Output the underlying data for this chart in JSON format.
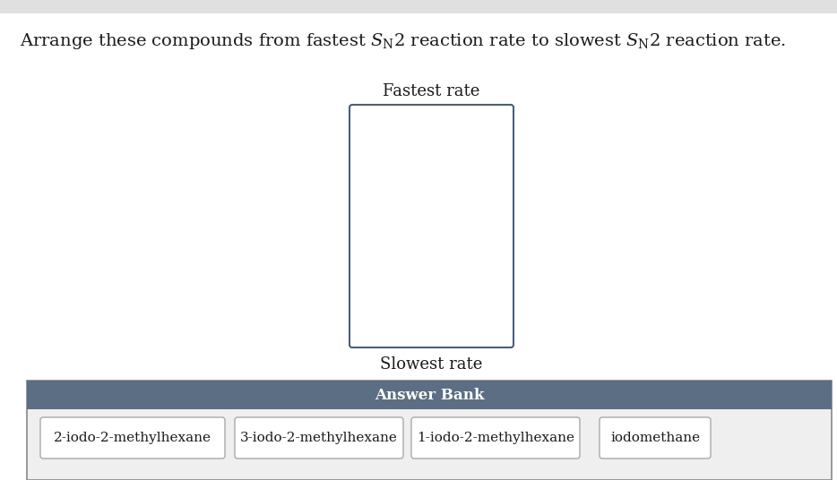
{
  "fastest_label": "Fastest rate",
  "slowest_label": "Slowest rate",
  "answer_bank_label": "Answer Bank",
  "compounds": [
    "2-iodo-2-methylhexane",
    "3-iodo-2-methylhexane",
    "1-iodo-2-methylhexane",
    "iodomethane"
  ],
  "main_bg": "#ffffff",
  "top_bar_color": "#e0e0e0",
  "box_border_color": "#4a5f7a",
  "answer_bank_header_color": "#5b6e84",
  "answer_bank_header_text_color": "#ffffff",
  "answer_bank_bg": "#efefef",
  "answer_bank_border": "#888888",
  "compound_box_border": "#aaaaaa",
  "compound_box_bg": "#ffffff",
  "text_color": "#1a1a1a",
  "title_part1": "Arrange these compounds from fastest S",
  "title_sub1": "N",
  "title_part2": "2 reaction rate to slowest S",
  "title_sub2": "N",
  "title_part3": "2 reaction rate.",
  "font_size_title": 14,
  "font_size_labels": 13,
  "font_size_answer_bank": 12,
  "font_size_compounds": 11,
  "font_size_sub": 9
}
